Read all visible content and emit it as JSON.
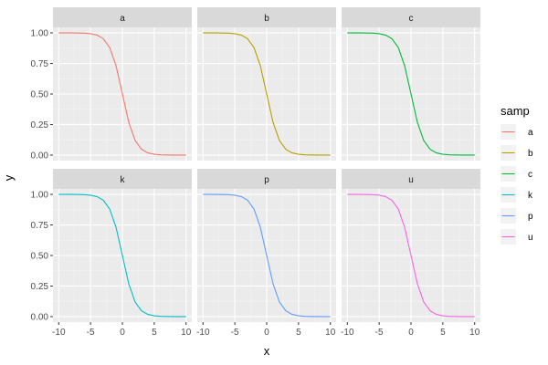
{
  "chart_data": {
    "type": "line",
    "layout": "facet_wrap 2x3",
    "xlabel": "x",
    "ylabel": "y",
    "xlim": [
      -10,
      10
    ],
    "ylim": [
      0,
      1
    ],
    "x_ticks": [
      -10,
      -5,
      0,
      5,
      10
    ],
    "x_tick_labels": [
      "-10",
      "-5",
      "0",
      "5",
      "10"
    ],
    "y_ticks": [
      0,
      0.25,
      0.5,
      0.75,
      1.0
    ],
    "y_tick_labels": [
      "0.00",
      "0.25",
      "0.50",
      "0.75",
      "1.00"
    ],
    "x": [
      -10,
      -9,
      -8,
      -7,
      -6,
      -5,
      -4,
      -3,
      -2,
      -1,
      0,
      1,
      2,
      3,
      4,
      5,
      6,
      7,
      8,
      9,
      10
    ],
    "legend": {
      "title": "samp",
      "position": "right"
    },
    "series": [
      {
        "name": "a",
        "color": "#F8766D",
        "values": [
          1.0,
          0.9999,
          0.9997,
          0.9991,
          0.9975,
          0.9933,
          0.982,
          0.9526,
          0.8808,
          0.7311,
          0.5,
          0.2689,
          0.1192,
          0.0474,
          0.018,
          0.0067,
          0.0025,
          0.0009,
          0.0003,
          0.0001,
          0.0
        ]
      },
      {
        "name": "b",
        "color": "#B79F00",
        "values": [
          1.0,
          0.9999,
          0.9997,
          0.9991,
          0.9975,
          0.9933,
          0.982,
          0.9526,
          0.8808,
          0.7311,
          0.5,
          0.2689,
          0.1192,
          0.0474,
          0.018,
          0.0067,
          0.0025,
          0.0009,
          0.0003,
          0.0001,
          0.0
        ]
      },
      {
        "name": "c",
        "color": "#00BA38",
        "values": [
          1.0,
          0.9999,
          0.9997,
          0.9991,
          0.9975,
          0.9933,
          0.982,
          0.9526,
          0.8808,
          0.7311,
          0.5,
          0.2689,
          0.1192,
          0.0474,
          0.018,
          0.0067,
          0.0025,
          0.0009,
          0.0003,
          0.0001,
          0.0
        ]
      },
      {
        "name": "k",
        "color": "#00BFC4",
        "values": [
          1.0,
          0.9999,
          0.9997,
          0.9991,
          0.9975,
          0.9933,
          0.982,
          0.9526,
          0.8808,
          0.7311,
          0.5,
          0.2689,
          0.1192,
          0.0474,
          0.018,
          0.0067,
          0.0025,
          0.0009,
          0.0003,
          0.0001,
          0.0
        ]
      },
      {
        "name": "p",
        "color": "#619CFF",
        "values": [
          1.0,
          0.9999,
          0.9997,
          0.9991,
          0.9975,
          0.9933,
          0.982,
          0.9526,
          0.8808,
          0.7311,
          0.5,
          0.2689,
          0.1192,
          0.0474,
          0.018,
          0.0067,
          0.0025,
          0.0009,
          0.0003,
          0.0001,
          0.0
        ]
      },
      {
        "name": "u",
        "color": "#F564E3",
        "values": [
          1.0,
          0.9999,
          0.9997,
          0.9991,
          0.9975,
          0.9933,
          0.982,
          0.9526,
          0.8808,
          0.7311,
          0.5,
          0.2689,
          0.1192,
          0.0474,
          0.018,
          0.0067,
          0.0025,
          0.0009,
          0.0003,
          0.0001,
          0.0
        ]
      }
    ]
  }
}
